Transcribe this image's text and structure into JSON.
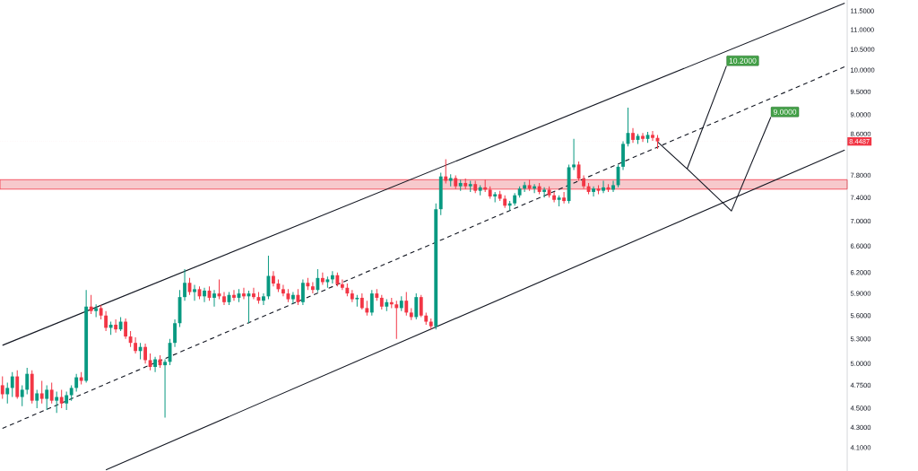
{
  "chart_data": {
    "type": "candlestick",
    "categories": [
      null,
      null,
      null,
      null,
      null,
      null,
      null,
      null,
      null,
      null,
      null,
      null,
      null,
      null,
      null,
      null,
      null,
      null,
      null,
      null,
      null,
      null,
      null,
      null,
      null,
      null,
      null,
      null,
      null,
      null,
      null,
      null,
      null,
      null,
      null,
      null,
      null,
      null,
      null,
      null,
      null,
      null,
      null,
      null,
      null,
      null,
      null,
      null,
      null,
      null,
      null,
      null,
      null,
      null,
      null,
      null,
      null,
      null,
      null,
      null,
      null,
      null,
      null,
      null,
      null,
      null,
      null,
      null,
      null,
      null,
      null,
      null,
      null,
      null,
      null,
      null,
      null,
      null,
      null,
      null,
      null,
      null,
      null,
      null,
      null,
      null,
      null,
      null,
      null,
      null,
      null,
      null,
      null,
      null,
      null,
      null,
      null,
      null,
      null,
      null,
      null,
      null,
      null,
      null,
      null,
      null,
      null,
      null,
      null,
      null,
      null,
      null,
      null,
      null,
      null,
      null,
      null,
      null,
      null,
      null,
      null,
      null,
      null,
      null,
      null,
      null,
      null,
      null,
      null,
      null,
      null,
      null,
      null,
      null,
      null,
      null,
      null,
      null,
      null,
      null,
      null,
      null,
      null,
      null,
      null,
      null,
      null,
      null,
      null,
      null,
      null,
      null,
      null,
      null,
      null,
      null,
      null,
      null,
      null,
      null,
      null,
      null,
      null,
      null,
      null,
      null,
      null,
      null,
      null,
      null,
      null,
      null
    ],
    "ohlc": [
      [
        4.75,
        4.85,
        4.6,
        4.65
      ],
      [
        4.65,
        4.78,
        4.55,
        4.72
      ],
      [
        4.72,
        4.9,
        4.62,
        4.85
      ],
      [
        4.85,
        4.92,
        4.6,
        4.62
      ],
      [
        4.62,
        4.75,
        4.52,
        4.7
      ],
      [
        4.7,
        4.95,
        4.65,
        4.88
      ],
      [
        4.88,
        4.92,
        4.55,
        4.58
      ],
      [
        4.58,
        4.7,
        4.5,
        4.66
      ],
      [
        4.66,
        4.8,
        4.55,
        4.6
      ],
      [
        4.6,
        4.75,
        4.48,
        4.7
      ],
      [
        4.7,
        4.78,
        4.55,
        4.58
      ],
      [
        4.58,
        4.68,
        4.45,
        4.62
      ],
      [
        4.62,
        4.7,
        4.5,
        4.55
      ],
      [
        4.55,
        4.68,
        4.48,
        4.64
      ],
      [
        4.64,
        4.75,
        4.58,
        4.72
      ],
      [
        4.72,
        4.88,
        4.68,
        4.84
      ],
      [
        4.84,
        4.9,
        4.76,
        4.8
      ],
      [
        4.8,
        5.95,
        4.78,
        5.72
      ],
      [
        5.72,
        5.88,
        5.62,
        5.66
      ],
      [
        5.66,
        5.75,
        5.58,
        5.7
      ],
      [
        5.7,
        5.74,
        5.55,
        5.6
      ],
      [
        5.6,
        5.66,
        5.4,
        5.44
      ],
      [
        5.44,
        5.52,
        5.35,
        5.48
      ],
      [
        5.48,
        5.55,
        5.38,
        5.42
      ],
      [
        5.42,
        5.58,
        5.4,
        5.52
      ],
      [
        5.52,
        5.56,
        5.3,
        5.33
      ],
      [
        5.33,
        5.4,
        5.2,
        5.25
      ],
      [
        5.25,
        5.32,
        5.12,
        5.15
      ],
      [
        5.15,
        5.25,
        5.05,
        5.2
      ],
      [
        5.2,
        5.24,
        5.0,
        5.04
      ],
      [
        5.04,
        5.12,
        4.92,
        4.96
      ],
      [
        4.96,
        5.08,
        4.9,
        5.05
      ],
      [
        5.05,
        5.1,
        4.95,
        4.98
      ],
      [
        4.98,
        5.05,
        4.4,
        5.02
      ],
      [
        5.02,
        5.3,
        4.98,
        5.25
      ],
      [
        5.25,
        5.55,
        5.2,
        5.5
      ],
      [
        5.5,
        5.95,
        5.45,
        5.85
      ],
      [
        5.85,
        6.25,
        5.8,
        6.05
      ],
      [
        6.05,
        6.12,
        5.88,
        5.92
      ],
      [
        5.92,
        6.02,
        5.8,
        5.96
      ],
      [
        5.96,
        6.0,
        5.82,
        5.86
      ],
      [
        5.86,
        5.98,
        5.78,
        5.94
      ],
      [
        5.94,
        6.0,
        5.8,
        5.84
      ],
      [
        5.84,
        5.95,
        5.72,
        5.9
      ],
      [
        5.9,
        6.1,
        5.82,
        5.86
      ],
      [
        5.86,
        5.92,
        5.74,
        5.78
      ],
      [
        5.78,
        5.92,
        5.74,
        5.88
      ],
      [
        5.88,
        5.95,
        5.8,
        5.84
      ],
      [
        5.84,
        5.96,
        5.78,
        5.9
      ],
      [
        5.9,
        5.98,
        5.82,
        5.86
      ],
      [
        5.86,
        5.94,
        5.5,
        5.9
      ],
      [
        5.9,
        5.98,
        5.82,
        5.85
      ],
      [
        5.85,
        5.92,
        5.76,
        5.8
      ],
      [
        5.8,
        5.9,
        5.74,
        5.86
      ],
      [
        5.86,
        6.45,
        5.82,
        6.15
      ],
      [
        6.15,
        6.22,
        6.0,
        6.04
      ],
      [
        6.04,
        6.1,
        5.92,
        5.96
      ],
      [
        5.96,
        6.02,
        5.86,
        5.9
      ],
      [
        5.9,
        5.96,
        5.78,
        5.82
      ],
      [
        5.82,
        5.92,
        5.76,
        5.88
      ],
      [
        5.88,
        5.96,
        5.74,
        5.78
      ],
      [
        5.78,
        6.1,
        5.74,
        6.05
      ],
      [
        6.05,
        6.12,
        5.95,
        6.0
      ],
      [
        6.0,
        6.06,
        5.9,
        5.95
      ],
      [
        5.95,
        6.25,
        5.92,
        6.12
      ],
      [
        6.12,
        6.2,
        6.02,
        6.06
      ],
      [
        6.06,
        6.14,
        5.98,
        6.1
      ],
      [
        6.1,
        6.22,
        6.04,
        6.16
      ],
      [
        6.16,
        6.2,
        6.0,
        6.03
      ],
      [
        6.03,
        6.1,
        5.95,
        5.98
      ],
      [
        5.98,
        6.04,
        5.86,
        5.9
      ],
      [
        5.9,
        5.95,
        5.78,
        5.82
      ],
      [
        5.82,
        5.88,
        5.72,
        5.84
      ],
      [
        5.84,
        5.9,
        5.68,
        5.7
      ],
      [
        5.7,
        5.8,
        5.6,
        5.64
      ],
      [
        5.64,
        5.95,
        5.6,
        5.9
      ],
      [
        5.9,
        5.96,
        5.8,
        5.84
      ],
      [
        5.84,
        5.88,
        5.68,
        5.72
      ],
      [
        5.72,
        5.82,
        5.66,
        5.78
      ],
      [
        5.78,
        5.84,
        5.7,
        5.75
      ],
      [
        5.75,
        5.8,
        5.3,
        5.7
      ],
      [
        5.7,
        5.86,
        5.66,
        5.8
      ],
      [
        5.8,
        5.92,
        5.6,
        5.64
      ],
      [
        5.64,
        5.7,
        5.54,
        5.58
      ],
      [
        5.58,
        5.9,
        5.55,
        5.85
      ],
      [
        5.85,
        5.88,
        5.58,
        5.6
      ],
      [
        5.6,
        5.64,
        5.48,
        5.52
      ],
      [
        5.52,
        5.56,
        5.42,
        5.46
      ],
      [
        5.46,
        7.3,
        5.42,
        7.2
      ],
      [
        7.2,
        7.85,
        7.1,
        7.78
      ],
      [
        7.78,
        8.1,
        7.65,
        7.7
      ],
      [
        7.7,
        7.82,
        7.6,
        7.75
      ],
      [
        7.75,
        7.8,
        7.55,
        7.6
      ],
      [
        7.6,
        7.72,
        7.52,
        7.66
      ],
      [
        7.66,
        7.74,
        7.55,
        7.6
      ],
      [
        7.6,
        7.7,
        7.5,
        7.64
      ],
      [
        7.64,
        7.7,
        7.48,
        7.52
      ],
      [
        7.52,
        7.62,
        7.44,
        7.58
      ],
      [
        7.58,
        7.72,
        7.5,
        7.54
      ],
      [
        7.54,
        7.6,
        7.38,
        7.42
      ],
      [
        7.42,
        7.5,
        7.32,
        7.46
      ],
      [
        7.46,
        7.52,
        7.34,
        7.38
      ],
      [
        7.38,
        7.44,
        7.22,
        7.26
      ],
      [
        7.26,
        7.34,
        7.18,
        7.3
      ],
      [
        7.3,
        7.48,
        7.26,
        7.44
      ],
      [
        7.44,
        7.6,
        7.4,
        7.56
      ],
      [
        7.56,
        7.68,
        7.5,
        7.62
      ],
      [
        7.62,
        7.72,
        7.52,
        7.56
      ],
      [
        7.56,
        7.64,
        7.48,
        7.6
      ],
      [
        7.6,
        7.66,
        7.46,
        7.5
      ],
      [
        7.5,
        7.58,
        7.4,
        7.54
      ],
      [
        7.54,
        7.6,
        7.4,
        7.44
      ],
      [
        7.44,
        7.5,
        7.32,
        7.36
      ],
      [
        7.36,
        7.44,
        7.25,
        7.4
      ],
      [
        7.4,
        7.5,
        7.3,
        7.34
      ],
      [
        7.34,
        8.0,
        7.3,
        7.95
      ],
      [
        7.95,
        8.5,
        7.9,
        8.0
      ],
      [
        8.0,
        8.06,
        7.7,
        7.74
      ],
      [
        7.74,
        7.8,
        7.56,
        7.6
      ],
      [
        7.6,
        7.66,
        7.46,
        7.5
      ],
      [
        7.5,
        7.6,
        7.42,
        7.56
      ],
      [
        7.56,
        7.62,
        7.46,
        7.52
      ],
      [
        7.52,
        7.7,
        7.48,
        7.58
      ],
      [
        7.58,
        7.64,
        7.5,
        7.54
      ],
      [
        7.54,
        7.7,
        7.5,
        7.62
      ],
      [
        7.62,
        8.0,
        7.58,
        7.96
      ],
      [
        7.96,
        8.45,
        7.9,
        8.4
      ],
      [
        8.4,
        9.15,
        8.35,
        8.62
      ],
      [
        8.62,
        8.72,
        8.42,
        8.48
      ],
      [
        8.48,
        8.6,
        8.4,
        8.56
      ],
      [
        8.56,
        8.62,
        8.44,
        8.5
      ],
      [
        8.5,
        8.64,
        8.42,
        8.58
      ],
      [
        8.58,
        8.66,
        8.46,
        8.52
      ],
      [
        8.52,
        8.58,
        8.3,
        8.45
      ],
      null,
      null,
      null,
      null,
      null,
      null,
      null,
      null,
      null,
      null,
      null,
      null,
      null,
      null,
      null,
      null,
      null,
      null,
      null,
      null,
      null,
      null,
      null,
      null,
      null,
      null,
      null,
      null,
      null,
      null,
      null,
      null,
      null,
      null,
      null,
      null,
      null,
      null
    ],
    "colors": [
      "#f23645",
      "#089981",
      "#089981",
      "#f23645",
      "#089981",
      "#089981",
      "#f23645",
      "#089981",
      "#f23645",
      "#089981",
      "#f23645",
      "#089981",
      "#f23645",
      "#089981",
      "#089981",
      "#089981",
      "#f23645",
      "#089981",
      "#f23645",
      "#089981",
      "#f23645",
      "#f23645",
      "#089981",
      "#f23645",
      "#089981",
      "#f23645",
      "#f23645",
      "#f23645",
      "#089981",
      "#f23645",
      "#f23645",
      "#089981",
      "#f23645",
      "#089981",
      "#089981",
      "#089981",
      "#089981",
      "#089981",
      "#f23645",
      "#089981",
      "#f23645",
      "#089981",
      "#f23645",
      "#089981",
      "#f23645",
      "#f23645",
      "#089981",
      "#f23645",
      "#089981",
      "#f23645",
      "#089981",
      "#f23645",
      "#f23645",
      "#089981",
      "#089981",
      "#f23645",
      "#f23645",
      "#f23645",
      "#f23645",
      "#089981",
      "#f23645",
      "#089981",
      "#f23645",
      "#f23645",
      "#089981",
      "#f23645",
      "#089981",
      "#089981",
      "#f23645",
      "#f23645",
      "#f23645",
      "#f23645",
      "#089981",
      "#f23645",
      "#f23645",
      "#089981",
      "#f23645",
      "#f23645",
      "#089981",
      "#f23645",
      "#f23645",
      "#089981",
      "#f23645",
      "#f23645",
      "#089981",
      "#f23645",
      "#f23645",
      "#f23645",
      "#089981",
      "#089981",
      "#f23645",
      "#089981",
      "#f23645",
      "#089981",
      "#f23645",
      "#089981",
      "#f23645",
      "#089981",
      "#f23645",
      "#f23645",
      "#089981",
      "#f23645",
      "#f23645",
      "#089981",
      "#089981",
      "#089981",
      "#089981",
      "#f23645",
      "#089981",
      "#f23645",
      "#089981",
      "#f23645",
      "#f23645",
      "#089981",
      "#f23645",
      "#089981",
      "#089981",
      "#f23645",
      "#f23645",
      "#f23645",
      "#089981",
      "#f23645",
      "#089981",
      "#f23645",
      "#089981",
      "#089981",
      "#089981",
      "#089981",
      "#f23645",
      "#089981",
      "#f23645",
      "#089981",
      "#f23645",
      "#f23645",
      null,
      null,
      null,
      null,
      null,
      null,
      null,
      null,
      null,
      null,
      null,
      null,
      null,
      null,
      null,
      null,
      null,
      null,
      null,
      null,
      null,
      null,
      null,
      null,
      null,
      null,
      null,
      null,
      null,
      null,
      null,
      null,
      null,
      null,
      null,
      null,
      null,
      null
    ],
    "series": [
      {
        "type": "line",
        "color": "#131722",
        "line_style": "solid",
        "values": [
          5.22,
          null,
          null,
          null,
          null,
          null,
          null,
          null,
          null,
          null,
          null,
          null,
          null,
          null,
          null,
          null,
          null,
          null,
          null,
          null,
          null,
          null,
          null,
          null,
          null,
          null,
          null,
          null,
          null,
          null,
          null,
          null,
          null,
          null,
          null,
          null,
          null,
          null,
          null,
          null,
          null,
          null,
          null,
          null,
          null,
          null,
          null,
          null,
          null,
          null,
          null,
          null,
          null,
          null,
          null,
          null,
          null,
          null,
          null,
          null,
          null,
          null,
          null,
          null,
          null,
          null,
          null,
          null,
          null,
          null,
          null,
          null,
          null,
          null,
          null,
          null,
          null,
          null,
          null,
          null,
          null,
          null,
          null,
          null,
          null,
          null,
          null,
          null,
          null,
          null,
          null,
          null,
          null,
          null,
          null,
          null,
          null,
          null,
          null,
          null,
          null,
          null,
          null,
          null,
          null,
          null,
          null,
          null,
          null,
          null,
          null,
          null,
          null,
          null,
          null,
          null,
          null,
          null,
          null,
          null,
          null,
          null,
          null,
          null,
          null,
          null,
          null,
          null,
          null,
          null,
          null,
          null,
          null,
          null,
          null,
          null,
          null,
          null,
          null,
          null,
          null,
          null,
          null,
          null,
          null,
          null,
          null,
          null,
          null,
          null,
          null,
          null,
          null,
          null,
          null,
          null,
          null,
          null,
          null,
          null,
          null,
          null,
          null,
          null,
          null,
          null,
          null,
          null,
          null,
          null,
          null,
          11.71
        ]
      },
      {
        "type": "line",
        "color": "#131722",
        "line_style": "dashed",
        "values": [
          4.29,
          null,
          null,
          null,
          null,
          null,
          null,
          null,
          null,
          null,
          null,
          null,
          null,
          null,
          null,
          null,
          null,
          null,
          null,
          null,
          null,
          null,
          null,
          null,
          null,
          null,
          null,
          null,
          null,
          null,
          null,
          null,
          null,
          null,
          null,
          null,
          null,
          null,
          null,
          null,
          null,
          null,
          null,
          null,
          null,
          null,
          null,
          null,
          null,
          null,
          null,
          null,
          null,
          null,
          null,
          null,
          null,
          null,
          null,
          null,
          null,
          null,
          null,
          null,
          null,
          null,
          null,
          null,
          null,
          null,
          null,
          null,
          null,
          null,
          null,
          null,
          null,
          null,
          null,
          null,
          null,
          null,
          null,
          null,
          null,
          null,
          null,
          null,
          null,
          null,
          null,
          null,
          null,
          null,
          null,
          null,
          null,
          null,
          null,
          null,
          null,
          null,
          null,
          null,
          null,
          null,
          null,
          null,
          null,
          null,
          null,
          null,
          null,
          null,
          null,
          null,
          null,
          null,
          null,
          null,
          null,
          null,
          null,
          null,
          null,
          null,
          null,
          null,
          null,
          null,
          null,
          null,
          null,
          null,
          null,
          null,
          null,
          null,
          null,
          null,
          null,
          null,
          null,
          null,
          null,
          null,
          null,
          null,
          null,
          null,
          null,
          null,
          null,
          null,
          null,
          null,
          null,
          null,
          null,
          null,
          null,
          null,
          null,
          null,
          null,
          null,
          null,
          null,
          null,
          null,
          null,
          10.08
        ]
      },
      {
        "type": "line",
        "color": "#131722",
        "line_style": "solid",
        "values": [
          null,
          null,
          null,
          null,
          null,
          null,
          null,
          null,
          null,
          null,
          null,
          null,
          null,
          null,
          null,
          null,
          null,
          null,
          null,
          null,
          null,
          3.89,
          null,
          null,
          null,
          null,
          null,
          null,
          null,
          null,
          null,
          null,
          null,
          null,
          null,
          null,
          null,
          null,
          null,
          null,
          null,
          null,
          null,
          null,
          null,
          null,
          null,
          null,
          null,
          null,
          null,
          null,
          null,
          null,
          null,
          null,
          null,
          null,
          null,
          null,
          null,
          null,
          null,
          null,
          null,
          null,
          null,
          null,
          null,
          null,
          null,
          null,
          null,
          null,
          null,
          null,
          null,
          null,
          null,
          null,
          null,
          null,
          null,
          null,
          null,
          null,
          null,
          null,
          null,
          null,
          null,
          null,
          null,
          null,
          null,
          null,
          null,
          null,
          null,
          null,
          null,
          null,
          null,
          null,
          null,
          null,
          null,
          null,
          null,
          null,
          null,
          null,
          null,
          null,
          null,
          null,
          null,
          null,
          null,
          null,
          null,
          null,
          null,
          null,
          null,
          null,
          null,
          null,
          null,
          null,
          null,
          null,
          null,
          null,
          null,
          null,
          null,
          null,
          null,
          null,
          null,
          null,
          null,
          null,
          null,
          null,
          null,
          null,
          null,
          null,
          null,
          null,
          null,
          null,
          null,
          null,
          null,
          null,
          null,
          null,
          null,
          null,
          null,
          null,
          null,
          null,
          null,
          null,
          null,
          null,
          null,
          8.28
        ]
      },
      {
        "type": "line",
        "color": "#131722",
        "line_style": "solid",
        "values": [
          null,
          null,
          null,
          null,
          null,
          null,
          null,
          null,
          null,
          null,
          null,
          null,
          null,
          null,
          null,
          null,
          null,
          null,
          null,
          null,
          null,
          null,
          null,
          null,
          null,
          null,
          null,
          null,
          null,
          null,
          null,
          null,
          null,
          null,
          null,
          null,
          null,
          null,
          null,
          null,
          null,
          null,
          null,
          null,
          null,
          null,
          null,
          null,
          null,
          null,
          null,
          null,
          null,
          null,
          null,
          null,
          null,
          null,
          null,
          null,
          null,
          null,
          null,
          null,
          null,
          null,
          null,
          null,
          null,
          null,
          null,
          null,
          null,
          null,
          null,
          null,
          null,
          null,
          null,
          null,
          null,
          null,
          null,
          null,
          null,
          null,
          null,
          null,
          null,
          null,
          null,
          null,
          null,
          null,
          null,
          null,
          null,
          null,
          null,
          null,
          null,
          null,
          null,
          null,
          null,
          null,
          null,
          null,
          null,
          null,
          null,
          null,
          null,
          null,
          null,
          null,
          null,
          null,
          null,
          null,
          null,
          null,
          null,
          null,
          null,
          null,
          null,
          null,
          null,
          null,
          null,
          null,
          null,
          8.44,
          null,
          null,
          null,
          null,
          null,
          7.92,
          null,
          null,
          null,
          null,
          null,
          null,
          null,
          10.1,
          null,
          null,
          null,
          null,
          null,
          null,
          null,
          null,
          null,
          null,
          null,
          null,
          null,
          null,
          null,
          null,
          null,
          null,
          null,
          null,
          null,
          null,
          null,
          null
        ]
      },
      {
        "type": "line",
        "color": "#131722",
        "line_style": "solid",
        "values": [
          null,
          null,
          null,
          null,
          null,
          null,
          null,
          null,
          null,
          null,
          null,
          null,
          null,
          null,
          null,
          null,
          null,
          null,
          null,
          null,
          null,
          null,
          null,
          null,
          null,
          null,
          null,
          null,
          null,
          null,
          null,
          null,
          null,
          null,
          null,
          null,
          null,
          null,
          null,
          null,
          null,
          null,
          null,
          null,
          null,
          null,
          null,
          null,
          null,
          null,
          null,
          null,
          null,
          null,
          null,
          null,
          null,
          null,
          null,
          null,
          null,
          null,
          null,
          null,
          null,
          null,
          null,
          null,
          null,
          null,
          null,
          null,
          null,
          null,
          null,
          null,
          null,
          null,
          null,
          null,
          null,
          null,
          null,
          null,
          null,
          null,
          null,
          null,
          null,
          null,
          null,
          null,
          null,
          null,
          null,
          null,
          null,
          null,
          null,
          null,
          null,
          null,
          null,
          null,
          null,
          null,
          null,
          null,
          null,
          null,
          null,
          null,
          null,
          null,
          null,
          null,
          null,
          null,
          null,
          null,
          null,
          null,
          null,
          null,
          null,
          null,
          null,
          null,
          null,
          null,
          null,
          null,
          null,
          null,
          null,
          null,
          null,
          null,
          null,
          7.92,
          null,
          null,
          null,
          null,
          null,
          null,
          null,
          null,
          7.17,
          null,
          null,
          null,
          null,
          null,
          null,
          null,
          8.95,
          null,
          null,
          null,
          null,
          null,
          null,
          null,
          null,
          null,
          null,
          null,
          null,
          null,
          null,
          null
        ]
      }
    ],
    "bands": [
      {
        "axis": "y",
        "from": 7.55,
        "to": 7.72,
        "color": "#f7c9cc"
      }
    ],
    "ref_lines": [
      {
        "axis": "y",
        "value": 8.4487,
        "label": "8.4487",
        "color": "#f23645",
        "line_style": "dotted"
      }
    ],
    "annotations": [
      "10.2000",
      "9.0000"
    ],
    "ylim": [
      3.88,
      11.8
    ],
    "log": "y",
    "tick_labels": "y",
    "yticks": [
      {
        "value": 4.1,
        "label": "4.1000"
      },
      {
        "value": 4.3,
        "label": "4.3000"
      },
      {
        "value": 4.5,
        "label": "4.5000"
      },
      {
        "value": 4.75,
        "label": "4.7500"
      },
      {
        "value": 5.0,
        "label": "5.0000"
      },
      {
        "value": 5.3,
        "label": "5.3000"
      },
      {
        "value": 5.6,
        "label": "5.6000"
      },
      {
        "value": 5.9,
        "label": "5.9000"
      },
      {
        "value": 6.2,
        "label": "6.2000"
      },
      {
        "value": 6.6,
        "label": "6.6000"
      },
      {
        "value": 7.0,
        "label": "7.0000"
      },
      {
        "value": 7.4,
        "label": "7.4000"
      },
      {
        "value": 7.8,
        "label": "7.8000"
      },
      {
        "value": 8.6,
        "label": "8.6000"
      },
      {
        "value": 9.0,
        "label": "9.0000"
      },
      {
        "value": 9.5,
        "label": "9.5000"
      },
      {
        "value": 10.0,
        "label": "10.0000"
      },
      {
        "value": 10.5,
        "label": "10.5000"
      },
      {
        "value": 11.0,
        "label": "11.0000"
      },
      {
        "value": 11.5,
        "label": "11.5000"
      }
    ]
  }
}
